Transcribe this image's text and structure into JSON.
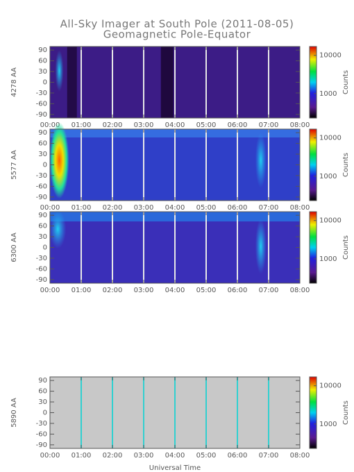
{
  "figure": {
    "title": "All-Sky Imager at South Pole (2011-08-05)",
    "subtitle": "Geomagnetic Pole-Equator",
    "xlabel": "Universal Time"
  },
  "chart_data": [
    {
      "type": "heatmap",
      "ylabel": "4278 AA",
      "background": "#3c1c86",
      "gap_color": "#e8e8e8",
      "ylim": [
        -100,
        100
      ],
      "yticks": [
        90,
        60,
        30,
        0,
        -30,
        -60,
        -90
      ],
      "xlim": [
        0,
        8
      ],
      "xticks": [
        {
          "value": 0,
          "label": "00:00"
        },
        {
          "value": 1,
          "label": "01:00"
        },
        {
          "value": 2,
          "label": "02:00"
        },
        {
          "value": 3,
          "label": "03:00"
        },
        {
          "value": 4,
          "label": "04:00"
        },
        {
          "value": 5,
          "label": "05:00"
        },
        {
          "value": 6,
          "label": "06:00"
        },
        {
          "value": 7,
          "label": "07:00"
        },
        {
          "value": 8,
          "label": "08:00"
        }
      ],
      "colorbar": {
        "label": "Counts",
        "log": true,
        "lim": [
          230,
          17000
        ],
        "ticks": [
          10000,
          1000
        ]
      }
    },
    {
      "type": "heatmap",
      "ylabel": "5577 AA",
      "background": "#2f3fc8",
      "gap_color": "#e8e8e8",
      "ylim": [
        -100,
        100
      ],
      "yticks": [
        90,
        60,
        30,
        0,
        -30,
        -60,
        -90
      ],
      "xlim": [
        0,
        8
      ],
      "xticks": [
        {
          "value": 0,
          "label": "00:00"
        },
        {
          "value": 1,
          "label": "01:00"
        },
        {
          "value": 2,
          "label": "02:00"
        },
        {
          "value": 3,
          "label": "03:00"
        },
        {
          "value": 4,
          "label": "04:00"
        },
        {
          "value": 5,
          "label": "05:00"
        },
        {
          "value": 6,
          "label": "06:00"
        },
        {
          "value": 7,
          "label": "07:00"
        },
        {
          "value": 8,
          "label": "08:00"
        }
      ],
      "colorbar": {
        "label": "Counts",
        "log": true,
        "lim": [
          230,
          17000
        ],
        "ticks": [
          10000,
          1000
        ]
      }
    },
    {
      "type": "heatmap",
      "ylabel": "6300 AA",
      "background": "#3a2fb8",
      "gap_color": "#e8e8e8",
      "ylim": [
        -100,
        100
      ],
      "yticks": [
        90,
        60,
        30,
        0,
        -30,
        -60,
        -90
      ],
      "xlim": [
        0,
        8
      ],
      "xticks": [
        {
          "value": 0,
          "label": "00:00"
        },
        {
          "value": 1,
          "label": "01:00"
        },
        {
          "value": 2,
          "label": "02:00"
        },
        {
          "value": 3,
          "label": "03:00"
        },
        {
          "value": 4,
          "label": "04:00"
        },
        {
          "value": 5,
          "label": "05:00"
        },
        {
          "value": 6,
          "label": "06:00"
        },
        {
          "value": 7,
          "label": "07:00"
        },
        {
          "value": 8,
          "label": "08:00"
        }
      ],
      "colorbar": {
        "label": "Counts",
        "log": true,
        "lim": [
          230,
          17000
        ],
        "ticks": [
          10000,
          1000
        ]
      }
    },
    {
      "type": "heatmap",
      "ylabel": "5890 AA",
      "background": "#c8c8c8",
      "gap_color": "#30d0d0",
      "ylim": [
        -100,
        100
      ],
      "yticks": [
        90,
        60,
        30,
        0,
        -30,
        -60,
        -90
      ],
      "xlim": [
        0,
        8
      ],
      "xticks": [
        {
          "value": 0,
          "label": "00:00"
        },
        {
          "value": 1,
          "label": "01:00"
        },
        {
          "value": 2,
          "label": "02:00"
        },
        {
          "value": 3,
          "label": "03:00"
        },
        {
          "value": 4,
          "label": "04:00"
        },
        {
          "value": 5,
          "label": "05:00"
        },
        {
          "value": 6,
          "label": "06:00"
        },
        {
          "value": 7,
          "label": "07:00"
        },
        {
          "value": 8,
          "label": "08:00"
        }
      ],
      "colorbar": {
        "label": "Counts",
        "log": true,
        "lim": [
          230,
          17000
        ],
        "ticks": [
          10000,
          1000
        ]
      }
    }
  ]
}
